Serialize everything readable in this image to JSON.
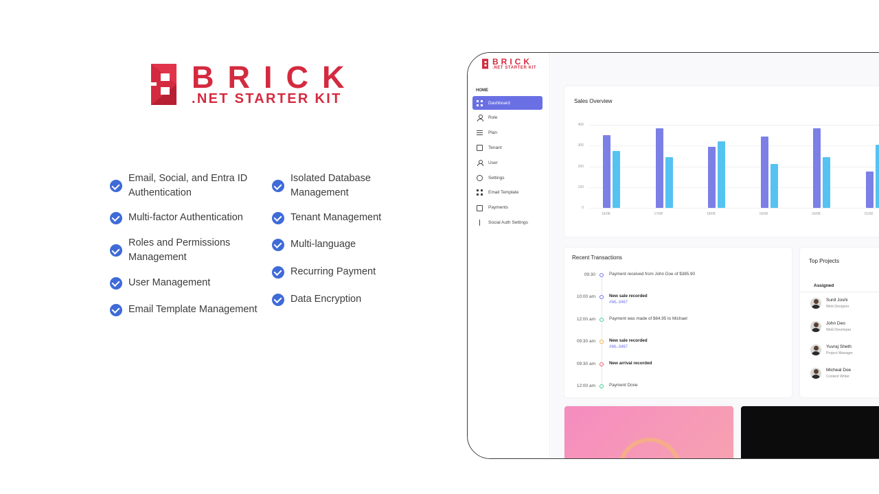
{
  "brand": {
    "word": "BRICK",
    "sub": ".NET STARTER KIT",
    "color": "#d42a3f"
  },
  "features": {
    "col1": [
      {
        "label": "Email, Social, and Entra ID\nAuthentication"
      },
      {
        "label": "Multi-factor Authentication"
      },
      {
        "label": "Roles and Permissions\nManagement"
      },
      {
        "label": "User Management"
      },
      {
        "label": "Email Template Management"
      }
    ],
    "col2": [
      {
        "label": "Isolated Database\nManagement"
      },
      {
        "label": "Tenant Management"
      },
      {
        "label": "Multi-language"
      },
      {
        "label": "Recurring Payment"
      },
      {
        "label": "Data Encryption"
      }
    ],
    "check_color": "#3f6bd8"
  },
  "sidebar": {
    "section": "HOME",
    "items": [
      {
        "label": "Dashboard",
        "icon": "dashboard-grid-icon",
        "active": true
      },
      {
        "label": "Role",
        "icon": "user-icon"
      },
      {
        "label": "Plan",
        "icon": "list-icon"
      },
      {
        "label": "Tenant",
        "icon": "building-icon"
      },
      {
        "label": "User",
        "icon": "users-icon"
      },
      {
        "label": "Settings",
        "icon": "gear-icon"
      },
      {
        "label": "Email Template",
        "icon": "template-icon"
      },
      {
        "label": "Payments",
        "icon": "card-icon"
      },
      {
        "label": "Social Auth Settings",
        "icon": "share-icon"
      }
    ],
    "active_color": "#6a70e4"
  },
  "sales": {
    "title": "Sales Overview",
    "chart_data": {
      "type": "bar",
      "categories": [
        "16/08",
        "17/08",
        "18/08",
        "19/08",
        "20/08",
        "21/08"
      ],
      "series": [
        {
          "values": [
            350,
            385,
            295,
            345,
            385,
            175
          ],
          "color": "#7b7fe6"
        },
        {
          "values": [
            275,
            245,
            320,
            210,
            245,
            305
          ],
          "color": "#55c3f1"
        }
      ],
      "y_ticks": [
        "400",
        "300",
        "200",
        "100",
        "0"
      ],
      "ylim": [
        0,
        400
      ],
      "grid": true
    }
  },
  "transactions": {
    "title": "Recent Transactions",
    "items": [
      {
        "time": "09:30",
        "text": "Payment received from John Doe of $385.90",
        "bold": false,
        "ref": "",
        "color": "#6a70e4"
      },
      {
        "time": "10:00 am",
        "text": "New sale recorded",
        "bold": true,
        "ref": "#ML-3467",
        "color": "#6a70e4"
      },
      {
        "time": "12:00 am",
        "text": "Payment was made of $64.95 to Michael",
        "bold": false,
        "ref": "",
        "color": "#3fc78b"
      },
      {
        "time": "09:30 am",
        "text": "New sale recorded",
        "bold": true,
        "ref": "#ML-3467",
        "color": "#f2a83a"
      },
      {
        "time": "09:30 am",
        "text": "New arrival recorded",
        "bold": true,
        "ref": "",
        "color": "#e8556a"
      },
      {
        "time": "12:00 am",
        "text": "Payment Done",
        "bold": false,
        "ref": "",
        "color": "#3fc78b"
      }
    ]
  },
  "projects": {
    "title": "Top Projects",
    "column": "Assigned",
    "people": [
      {
        "name": "Sunil Joshi",
        "role": "Web Designer"
      },
      {
        "name": "John Deo",
        "role": "Web Developer"
      },
      {
        "name": "Yuvraj Sheth",
        "role": "Project Manager"
      },
      {
        "name": "Micheal Doe",
        "role": "Content Writer"
      }
    ]
  }
}
